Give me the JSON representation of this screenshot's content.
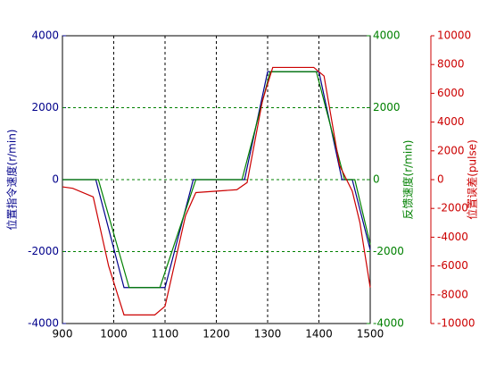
{
  "chart_data": {
    "type": "line",
    "xlim": [
      900,
      1500
    ],
    "xticks": [
      900,
      1000,
      1100,
      1200,
      1300,
      1400,
      1500
    ],
    "ylim": [
      -4000,
      4000
    ],
    "yticks": [
      -4000,
      -2000,
      0,
      2000,
      4000
    ],
    "y2lim": [
      -4000,
      4000
    ],
    "y2ticks": [
      -4000,
      -2000,
      0,
      2000,
      4000
    ],
    "y3lim": [
      -10000,
      10000
    ],
    "y3ticks": [
      -10000,
      -8000,
      -6000,
      -4000,
      -2000,
      0,
      2000,
      4000,
      6000,
      8000,
      10000
    ],
    "ylabel": "位置指令速度(r/min)",
    "y2label": "反馈速度(r/min)",
    "y3label": "位置误差(pulse)",
    "ycolor": "#00008b",
    "y2color": "#008000",
    "y3color": "#cc0000",
    "grid": true,
    "series": [
      {
        "axis": "y",
        "color": "#00008b",
        "x": [
          900,
          965,
          1020,
          1100,
          1155,
          1255,
          1300,
          1400,
          1445,
          1465,
          1500
        ],
        "values": [
          0,
          0,
          -3000,
          -3000,
          0,
          0,
          3000,
          3000,
          0,
          0,
          -1950
        ]
      },
      {
        "axis": "y2",
        "color": "#008000",
        "x": [
          900,
          970,
          1030,
          1090,
          1160,
          1250,
          1305,
          1395,
          1450,
          1470,
          1500
        ],
        "values": [
          0,
          0,
          -3000,
          -3000,
          0,
          0,
          3000,
          3000,
          0,
          0,
          -1800
        ]
      },
      {
        "axis": "y3",
        "color": "#cc0000",
        "x": [
          900,
          920,
          960,
          990,
          1020,
          1080,
          1100,
          1140,
          1160,
          1240,
          1260,
          1290,
          1310,
          1390,
          1410,
          1440,
          1465,
          1480,
          1500
        ],
        "values": [
          -500,
          -600,
          -1200,
          -6000,
          -9400,
          -9400,
          -8800,
          -2500,
          -900,
          -700,
          -200,
          5500,
          7800,
          7800,
          7200,
          1000,
          -800,
          -3000,
          -7500
        ]
      }
    ]
  }
}
